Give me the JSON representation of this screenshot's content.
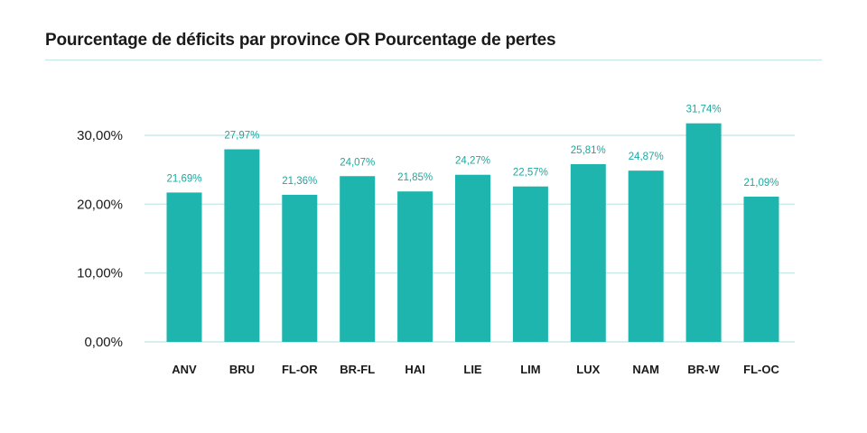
{
  "title": "Pourcentage de déficits par province OR Pourcentage de pertes",
  "colors": {
    "bar": "#1db5ad",
    "grid": "#bfe6e2",
    "value_label": "#1aa9a1",
    "text": "#1a1a1a"
  },
  "chart_data": {
    "type": "bar",
    "title": "Pourcentage de déficits par province OR Pourcentage de pertes",
    "xlabel": "",
    "ylabel": "",
    "categories": [
      "ANV",
      "BRU",
      "FL-OR",
      "BR-FL",
      "HAI",
      "LIE",
      "LIM",
      "LUX",
      "NAM",
      "BR-W",
      "FL-OC"
    ],
    "values": [
      21.69,
      27.97,
      21.36,
      24.07,
      21.85,
      24.27,
      22.57,
      25.81,
      24.87,
      31.74,
      21.09
    ],
    "value_labels": [
      "21,69%",
      "27,97%",
      "21,36%",
      "24,07%",
      "21,85%",
      "24,27%",
      "22,57%",
      "25,81%",
      "24,87%",
      "31,74%",
      "21,09%"
    ],
    "yticks": [
      0,
      10,
      20,
      30
    ],
    "ytick_labels": [
      "0,00%",
      "10,00%",
      "20,00%",
      "30,00%"
    ],
    "ylim": [
      0,
      30
    ],
    "grid": true,
    "legend": "none"
  }
}
